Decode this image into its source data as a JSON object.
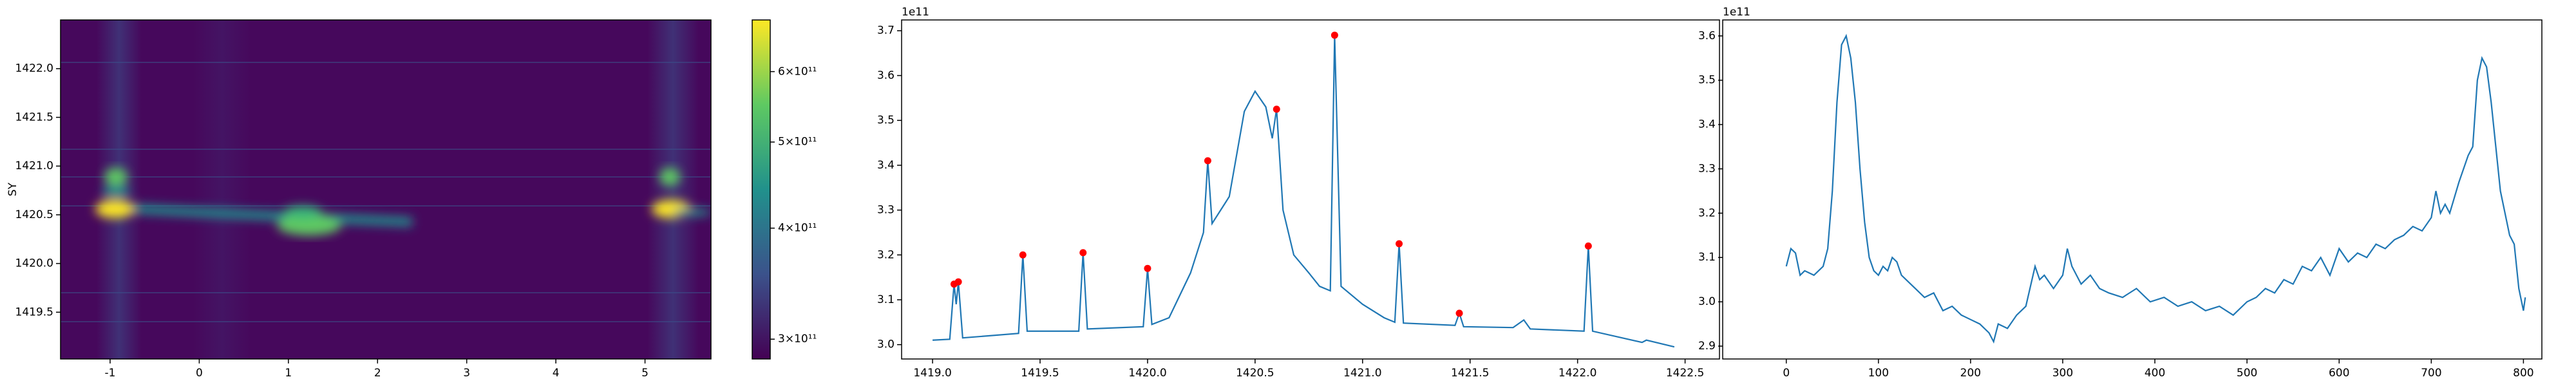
{
  "chart_data": [
    {
      "type": "heatmap",
      "ylabel": "SY",
      "colormap": "viridis",
      "xlim": [
        -1.556,
        5.74
      ],
      "ylim": [
        1419.02,
        1422.5
      ],
      "xticks": [
        -1,
        0,
        1,
        2,
        3,
        4,
        5
      ],
      "yticks": [
        1419.5,
        {
          "value": 1420,
          "label": "1420.0"
        },
        1420.5,
        {
          "value": 1421,
          "label": "1421.0"
        },
        1421.5,
        {
          "value": 1422,
          "label": "1422.0"
        }
      ],
      "colorbar": {
        "scale": "log",
        "clim": [
          285000000000,
          686000000000
        ],
        "ticks": [
          {
            "value": 300000000000,
            "label": "3×10¹¹"
          },
          {
            "value": 400000000000,
            "label": "4×10¹¹"
          },
          {
            "value": 500000000000,
            "label": "5×10¹¹"
          },
          {
            "value": 600000000000,
            "label": "6×10¹¹"
          }
        ]
      }
    },
    {
      "type": "line",
      "offset_text": "1e11",
      "xlim": [
        1418.856,
        1422.66
      ],
      "ylim": [
        2.968,
        3.724
      ],
      "xticks": [
        {
          "value": 1419,
          "label": "1419.0"
        },
        1419.5,
        {
          "value": 1420,
          "label": "1420.0"
        },
        1420.5,
        {
          "value": 1421,
          "label": "1421.0"
        },
        1421.5,
        {
          "value": 1422,
          "label": "1422.0"
        },
        1422.5
      ],
      "yticks": [
        {
          "value": 3,
          "label": "3.0"
        },
        3.1,
        3.2,
        3.3,
        3.4,
        3.5,
        3.6,
        3.7
      ],
      "series": [
        {
          "color": "#1f77b4",
          "style": "line",
          "x": [
            1419.0,
            1419.08,
            1419.1,
            1419.11,
            1419.12,
            1419.14,
            1419.4,
            1419.42,
            1419.44,
            1419.68,
            1419.7,
            1419.72,
            1419.98,
            1420.0,
            1420.02,
            1420.1,
            1420.2,
            1420.26,
            1420.28,
            1420.3,
            1420.38,
            1420.45,
            1420.5,
            1420.55,
            1420.58,
            1420.6,
            1420.63,
            1420.68,
            1420.75,
            1420.8,
            1420.85,
            1420.87,
            1420.9,
            1421.0,
            1421.1,
            1421.15,
            1421.17,
            1421.19,
            1421.43,
            1421.45,
            1421.47,
            1421.7,
            1421.75,
            1421.78,
            1422.03,
            1422.05,
            1422.07,
            1422.3,
            1422.32,
            1422.45
          ],
          "values": [
            3.01,
            3.012,
            3.135,
            3.09,
            3.14,
            3.015,
            3.025,
            3.2,
            3.03,
            3.03,
            3.205,
            3.035,
            3.04,
            3.17,
            3.045,
            3.06,
            3.16,
            3.25,
            3.41,
            3.27,
            3.33,
            3.52,
            3.565,
            3.53,
            3.46,
            3.525,
            3.3,
            3.2,
            3.16,
            3.13,
            3.12,
            3.69,
            3.13,
            3.09,
            3.06,
            3.05,
            3.225,
            3.048,
            3.043,
            3.07,
            3.04,
            3.038,
            3.055,
            3.035,
            3.03,
            3.22,
            3.03,
            3.005,
            3.01,
            2.995
          ]
        },
        {
          "color": "red",
          "style": "markers",
          "x": [
            1419.1,
            1419.12,
            1419.42,
            1419.7,
            1420.0,
            1420.28,
            1420.6,
            1420.87,
            1421.17,
            1421.45,
            1422.05
          ],
          "values": [
            3.135,
            3.14,
            3.2,
            3.205,
            3.17,
            3.41,
            3.525,
            3.69,
            3.225,
            3.07,
            3.22
          ]
        }
      ]
    },
    {
      "type": "line",
      "offset_text": "1e11",
      "xlim": [
        -69,
        820
      ],
      "ylim": [
        2.871,
        3.636
      ],
      "xticks": [
        0,
        100,
        200,
        300,
        400,
        500,
        600,
        700,
        800
      ],
      "yticks": [
        2.9,
        {
          "value": 3,
          "label": "3.0"
        },
        3.1,
        3.2,
        3.3,
        3.4,
        3.5,
        3.6
      ],
      "series": [
        {
          "color": "#1f77b4",
          "style": "line",
          "x": [
            0,
            5,
            10,
            15,
            20,
            30,
            40,
            45,
            50,
            55,
            60,
            65,
            70,
            75,
            80,
            85,
            90,
            95,
            100,
            105,
            110,
            115,
            120,
            125,
            130,
            140,
            150,
            160,
            170,
            180,
            190,
            200,
            210,
            220,
            225,
            230,
            240,
            250,
            260,
            270,
            275,
            280,
            290,
            300,
            305,
            310,
            320,
            330,
            340,
            350,
            365,
            380,
            395,
            410,
            425,
            440,
            455,
            470,
            485,
            500,
            510,
            520,
            530,
            540,
            550,
            560,
            570,
            580,
            590,
            600,
            610,
            620,
            630,
            640,
            650,
            660,
            670,
            680,
            690,
            700,
            705,
            710,
            715,
            720,
            730,
            740,
            745,
            750,
            755,
            760,
            765,
            770,
            775,
            780,
            785,
            790,
            795,
            800,
            802
          ],
          "values": [
            3.08,
            3.12,
            3.11,
            3.06,
            3.07,
            3.06,
            3.08,
            3.12,
            3.25,
            3.45,
            3.58,
            3.6,
            3.55,
            3.45,
            3.3,
            3.18,
            3.1,
            3.07,
            3.06,
            3.08,
            3.07,
            3.1,
            3.09,
            3.06,
            3.05,
            3.03,
            3.01,
            3.02,
            2.98,
            2.99,
            2.97,
            2.96,
            2.95,
            2.93,
            2.91,
            2.95,
            2.94,
            2.97,
            2.99,
            3.08,
            3.05,
            3.06,
            3.03,
            3.06,
            3.12,
            3.08,
            3.04,
            3.06,
            3.03,
            3.02,
            3.01,
            3.03,
            3.0,
            3.01,
            2.99,
            3.0,
            2.98,
            2.99,
            2.97,
            3.0,
            3.01,
            3.03,
            3.02,
            3.05,
            3.04,
            3.08,
            3.07,
            3.1,
            3.06,
            3.12,
            3.09,
            3.11,
            3.1,
            3.13,
            3.12,
            3.14,
            3.15,
            3.17,
            3.16,
            3.19,
            3.25,
            3.2,
            3.22,
            3.2,
            3.27,
            3.33,
            3.35,
            3.5,
            3.55,
            3.53,
            3.45,
            3.35,
            3.25,
            3.2,
            3.15,
            3.13,
            3.03,
            2.98,
            3.01
          ]
        }
      ]
    }
  ]
}
